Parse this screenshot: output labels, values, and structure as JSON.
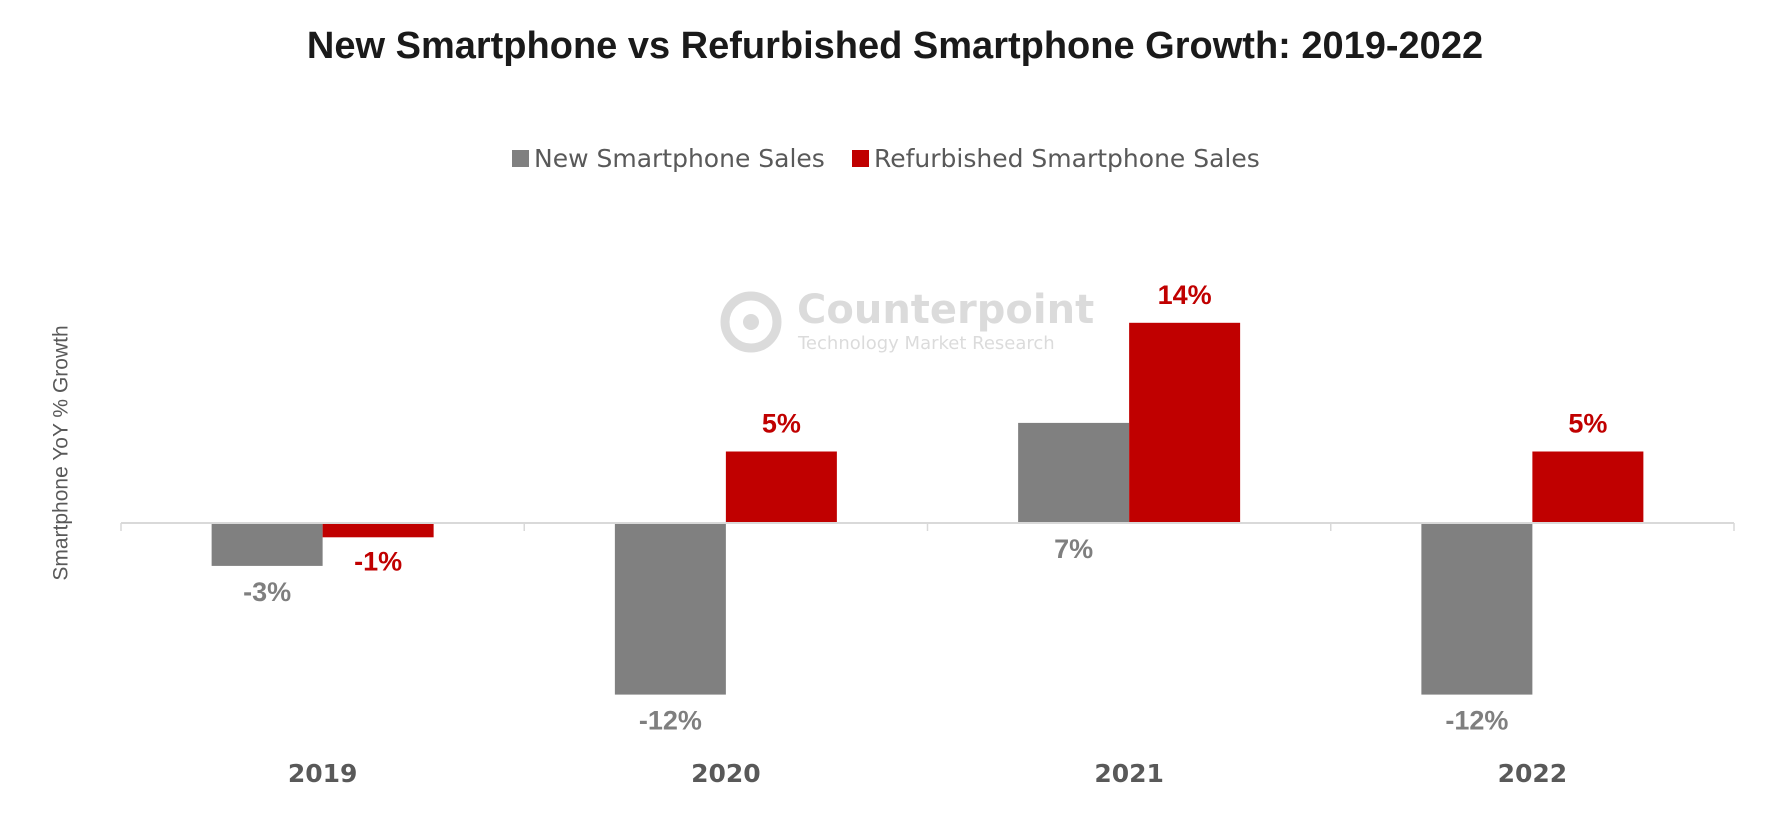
{
  "chart_data": {
    "type": "bar",
    "title": "New Smartphone vs Refurbished Smartphone Growth: 2019-2022",
    "y_label": "Smartphone YoY % Growth",
    "watermark": {
      "name": "Counterpoint",
      "tagline": "Technology Market Research"
    },
    "categories": [
      "2019",
      "2020",
      "2021",
      "2022"
    ],
    "series": [
      {
        "name": "New Smartphone Sales",
        "color": "#808080",
        "label_color": "#7f7f7f",
        "values": [
          -3,
          -12,
          7,
          -12
        ],
        "value_labels": [
          "-3%",
          "-12%",
          "7%",
          "-12%"
        ]
      },
      {
        "name": "Refurbished Smartphone Sales",
        "color": "#c00000",
        "label_color": "#c00000",
        "values": [
          -1,
          5,
          14,
          5
        ],
        "value_labels": [
          "-1%",
          "5%",
          "14%",
          "5%"
        ]
      }
    ],
    "ylim": [
      -15,
      20
    ],
    "grid": false
  }
}
